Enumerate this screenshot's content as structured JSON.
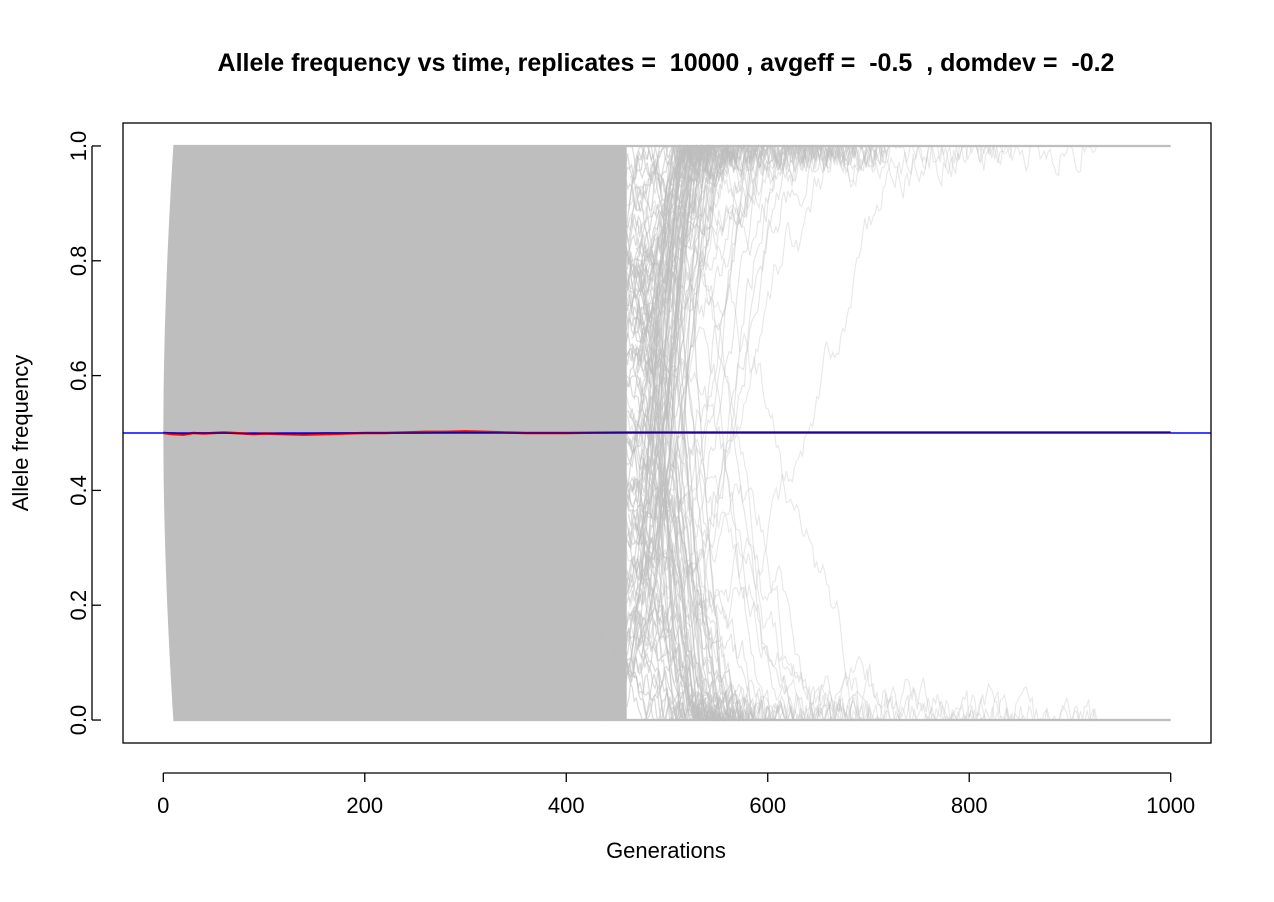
{
  "chart_data": {
    "type": "line",
    "title": "Allele frequency vs time, replicates =  10000 , avgeff =  -0.5  , domdev =  -0.2",
    "xlabel": "Generations",
    "ylabel": "Allele frequency",
    "xlim": [
      -40,
      1040
    ],
    "ylim": [
      -0.04,
      1.04
    ],
    "x_ticks": [
      0,
      200,
      400,
      600,
      800,
      1000
    ],
    "x_tick_labels": [
      "0",
      "200",
      "400",
      "600",
      "800",
      "1000"
    ],
    "y_ticks": [
      0.0,
      0.2,
      0.4,
      0.6,
      0.8,
      1.0
    ],
    "y_tick_labels": [
      "0.0",
      "0.2",
      "0.4",
      "0.6",
      "0.8",
      "1.0"
    ],
    "grid": false,
    "legend": "none",
    "replicates": 10000,
    "replicate_color": "#bebebe",
    "replicate_bulk_fixation_range": [
      10,
      500
    ],
    "replicate_last_lost_generation": 934,
    "replicate_last_fixed_generation": 1000,
    "hline": {
      "y": 0.5,
      "color": "#0000ff"
    },
    "series": [
      {
        "color": "#ff0000",
        "x": [
          0,
          10,
          20,
          30,
          40,
          50,
          60,
          70,
          80,
          90,
          100,
          120,
          140,
          160,
          180,
          200,
          220,
          240,
          260,
          280,
          300,
          320,
          340,
          360,
          380,
          400,
          450,
          500,
          550,
          600,
          650,
          700,
          750,
          800,
          850,
          900,
          950,
          1000
        ],
        "y": [
          0.5,
          0.498,
          0.497,
          0.5,
          0.499,
          0.5,
          0.501,
          0.5,
          0.499,
          0.498,
          0.499,
          0.498,
          0.497,
          0.498,
          0.499,
          0.5,
          0.5,
          0.501,
          0.502,
          0.502,
          0.503,
          0.502,
          0.501,
          0.5,
          0.5,
          0.5,
          0.501,
          0.501,
          0.501,
          0.501,
          0.501,
          0.501,
          0.501,
          0.501,
          0.501,
          0.501,
          0.501,
          0.501
        ]
      },
      {
        "color": "#0000aa",
        "x": [
          0,
          10,
          20,
          30,
          40,
          60,
          80,
          100,
          120,
          140,
          160,
          180,
          200,
          250,
          300,
          350,
          400,
          500,
          600,
          700,
          800,
          900,
          1000
        ],
        "y": [
          0.501,
          0.5,
          0.499,
          0.5,
          0.5,
          0.5,
          0.499,
          0.499,
          0.499,
          0.499,
          0.5,
          0.5,
          0.5,
          0.5,
          0.501,
          0.5,
          0.5,
          0.501,
          0.501,
          0.501,
          0.501,
          0.501,
          0.501
        ]
      }
    ]
  }
}
